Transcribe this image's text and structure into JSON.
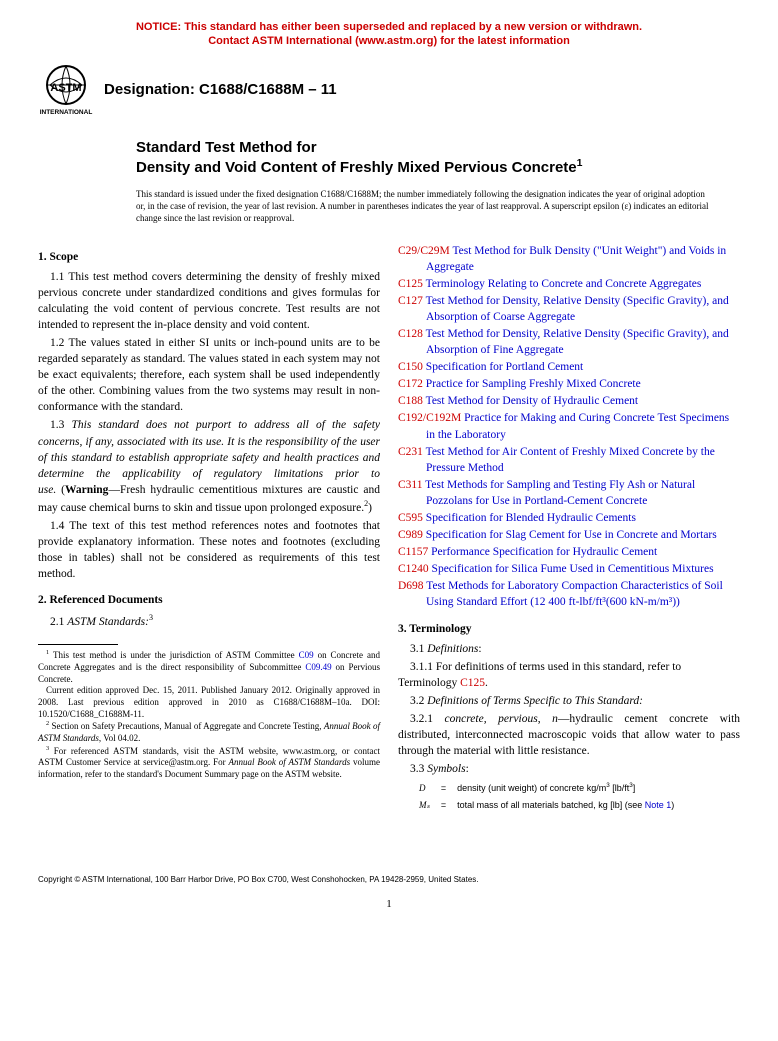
{
  "notice": {
    "line1": "NOTICE: This standard has either been superseded and replaced by a new version or withdrawn.",
    "line2": "Contact ASTM International (www.astm.org) for the latest information"
  },
  "designation": "Designation: C1688/C1688M – 11",
  "title_prefix": "Standard Test Method for",
  "title_main": "Density and Void Content of Freshly Mixed Pervious Concrete",
  "title_sup": "1",
  "issuance": "This standard is issued under the fixed designation C1688/C1688M; the number immediately following the designation indicates the year of original adoption or, in the case of revision, the year of last revision. A number in parentheses indicates the year of last reapproval. A superscript epsilon (ε) indicates an editorial change since the last revision or reapproval.",
  "sections": {
    "scope_head": "1. Scope",
    "scope_1_1": "1.1 This test method covers determining the density of freshly mixed pervious concrete under standardized conditions and gives formulas for calculating the void content of pervious concrete. Test results are not intended to represent the in-place density and void content.",
    "scope_1_2": "1.2 The values stated in either SI units or inch-pound units are to be regarded separately as standard. The values stated in each system may not be exact equivalents; therefore, each system shall be used independently of the other. Combining values from the two systems may result in non-conformance with the standard.",
    "scope_1_3_pre": "1.3 ",
    "scope_1_3_italic": "This standard does not purport to address all of the safety concerns, if any, associated with its use. It is the responsibility of the user of this standard to establish appropriate safety and health practices and determine the applicability of regulatory limitations prior to use.",
    "scope_1_3_warn_label": " (Warning",
    "scope_1_3_warn_text": "—Fresh hydraulic cementitious mixtures are caustic and may cause chemical burns to skin and tissue upon prolonged exposure.",
    "scope_1_3_warn_sup": "2",
    "scope_1_3_close": ")",
    "scope_1_4": "1.4 The text of this test method references notes and footnotes that provide explanatory information. These notes and footnotes (excluding those in tables) shall not be considered as requirements of this test method.",
    "refdocs_head": "2. Referenced Documents",
    "refdocs_2_1_pre": "2.1 ",
    "refdocs_2_1_italic": "ASTM Standards:",
    "refdocs_2_1_sup": "3",
    "term_head": "3. Terminology",
    "term_3_1_pre": "3.1 ",
    "term_3_1_italic": "Definitions",
    "term_3_1": ":",
    "term_3_1_1_a": "3.1.1 For definitions of terms used in this standard, refer to Terminology ",
    "term_3_1_1_link": "C125",
    "term_3_1_1_b": ".",
    "term_3_2_pre": "3.2 ",
    "term_3_2_italic": "Definitions of Terms Specific to This Standard:",
    "term_3_2_1_a": "3.2.1 ",
    "term_3_2_1_term": "concrete, pervious",
    "term_3_2_1_b": ", ",
    "term_3_2_1_n": "n",
    "term_3_2_1_c": "—hydraulic cement concrete with distributed, interconnected macroscopic voids that allow water to pass through the material with little resistance.",
    "term_3_3_pre": "3.3 ",
    "term_3_3_italic": "Symbols",
    "term_3_3": ":"
  },
  "references": [
    {
      "code": "C29/C29M",
      "title": "Test Method for Bulk Density (\"Unit Weight\") and Voids in Aggregate"
    },
    {
      "code": "C125",
      "title": "Terminology Relating to Concrete and Concrete Aggregates"
    },
    {
      "code": "C127",
      "title": "Test Method for Density, Relative Density (Specific Gravity), and Absorption of Coarse Aggregate"
    },
    {
      "code": "C128",
      "title": "Test Method for Density, Relative Density (Specific Gravity), and Absorption of Fine Aggregate"
    },
    {
      "code": "C150",
      "title": "Specification for Portland Cement"
    },
    {
      "code": "C172",
      "title": "Practice for Sampling Freshly Mixed Concrete"
    },
    {
      "code": "C188",
      "title": "Test Method for Density of Hydraulic Cement"
    },
    {
      "code": "C192/C192M",
      "title": "Practice for Making and Curing Concrete Test Specimens in the Laboratory"
    },
    {
      "code": "C231",
      "title": "Test Method for Air Content of Freshly Mixed Concrete by the Pressure Method"
    },
    {
      "code": "C311",
      "title": "Test Methods for Sampling and Testing Fly Ash or Natural Pozzolans for Use in Portland-Cement Concrete"
    },
    {
      "code": "C595",
      "title": "Specification for Blended Hydraulic Cements"
    },
    {
      "code": "C989",
      "title": "Specification for Slag Cement for Use in Concrete and Mortars"
    },
    {
      "code": "C1157",
      "title": "Performance Specification for Hydraulic Cement"
    },
    {
      "code": "C1240",
      "title": "Specification for Silica Fume Used in Cementitious Mixtures"
    },
    {
      "code": "D698",
      "title": "Test Methods for Laboratory Compaction Characteristics of Soil Using Standard Effort (12 400 ft-lbf/ft³(600 kN-m/m³))"
    }
  ],
  "symbols": [
    {
      "var": "D",
      "eq": "=",
      "def_a": "density (unit weight) of concrete kg/m",
      "def_sup1": "3",
      "def_b": " [lb/ft",
      "def_sup2": "3",
      "def_c": "]"
    },
    {
      "var": "Mₛ",
      "eq": "=",
      "def_a": "total mass of all materials batched, kg [lb] (see ",
      "def_link": "Note 1",
      "def_b": ")"
    }
  ],
  "footnotes": {
    "fn1_a": " This test method is under the jurisdiction of ASTM Committee ",
    "fn1_link1": "C09",
    "fn1_b": " on Concrete and Concrete Aggregates and is the direct responsibility of Subcommittee ",
    "fn1_link2": "C09.49",
    "fn1_c": " on Pervious Concrete.",
    "fn1_d": "Current edition approved Dec. 15, 2011. Published January 2012. Originally approved in 2008. Last previous edition approved in 2010 as C1688/C1688M–10a. DOI: 10.1520/C1688_C1688M-11.",
    "fn2_a": " Section on Safety Precautions, Manual of Aggregate and Concrete Testing, ",
    "fn2_b": "Annual Book of ASTM Standards",
    "fn2_c": ", Vol 04.02.",
    "fn3_a": " For referenced ASTM standards, visit the ASTM website, www.astm.org, or contact ASTM Customer Service at service@astm.org. For ",
    "fn3_b": "Annual Book of ASTM Standards",
    "fn3_c": " volume information, refer to the standard's Document Summary page on the ASTM website."
  },
  "copyright": "Copyright © ASTM International, 100 Barr Harbor Drive, PO Box C700, West Conshohocken, PA 19428-2959, United States.",
  "pagenum": "1",
  "colors": {
    "notice": "#cc0000",
    "link": "#0000cc",
    "refcode": "#cc0000"
  }
}
